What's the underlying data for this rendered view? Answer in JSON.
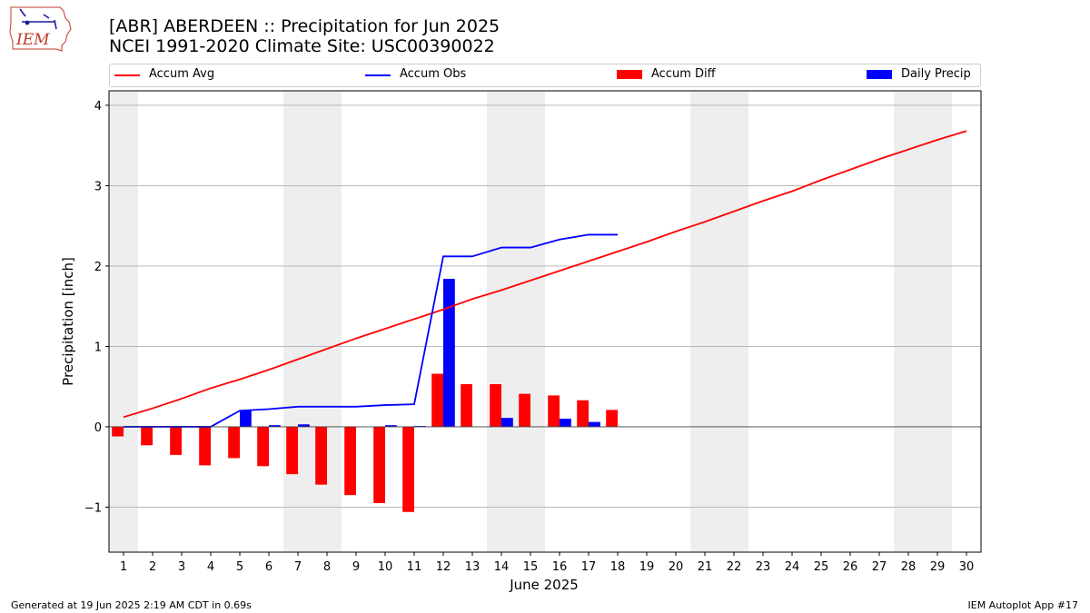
{
  "logo": {
    "text": "IEM"
  },
  "title_line1": "[ABR] ABERDEEN :: Precipitation for Jun 2025",
  "title_line2": "NCEI 1991-2020 Climate Site: USC00390022",
  "legend": {
    "accum_avg": "Accum Avg",
    "accum_obs": "Accum Obs",
    "accum_diff": "Accum Diff",
    "daily_precip": "Daily Precip"
  },
  "footer": {
    "left": "Generated at 19 Jun 2025 2:19 AM CDT in 0.69s",
    "right": "IEM Autoplot App #17"
  },
  "colors": {
    "avg": "#ff0000",
    "obs": "#0000ff",
    "diff": "#ff0000",
    "daily": "#0000ff",
    "weekend": "#eeeeee",
    "grid": "#b0b0b0"
  },
  "chart_data": {
    "type": "bar",
    "xlabel": "June 2025",
    "ylabel": "Precipitation [inch]",
    "ylim": [
      -1.56,
      4.18
    ],
    "xlim": [
      0.5,
      30.5
    ],
    "y_ticks": [
      -1,
      0,
      1,
      2,
      3,
      4
    ],
    "y_tick_labels": [
      "−1",
      "0",
      "1",
      "2",
      "3",
      "4"
    ],
    "x_ticks": [
      1,
      2,
      3,
      4,
      5,
      6,
      7,
      8,
      9,
      10,
      11,
      12,
      13,
      14,
      15,
      16,
      17,
      18,
      19,
      20,
      21,
      22,
      23,
      24,
      25,
      26,
      27,
      28,
      29,
      30
    ],
    "grid": "y",
    "weekend_shading": [
      [
        0.5,
        1.5
      ],
      [
        6.5,
        8.5
      ],
      [
        13.5,
        15.5
      ],
      [
        20.5,
        22.5
      ],
      [
        27.5,
        29.5
      ]
    ],
    "series": [
      {
        "name": "Accum Avg",
        "kind": "line",
        "x": [
          1,
          2,
          3,
          4,
          5,
          6,
          7,
          8,
          9,
          10,
          11,
          12,
          13,
          14,
          15,
          16,
          17,
          18,
          19,
          20,
          21,
          22,
          23,
          24,
          25,
          26,
          27,
          28,
          29,
          30
        ],
        "values": [
          0.12,
          0.23,
          0.35,
          0.48,
          0.59,
          0.71,
          0.84,
          0.97,
          1.1,
          1.22,
          1.34,
          1.46,
          1.59,
          1.7,
          1.82,
          1.94,
          2.06,
          2.18,
          2.3,
          2.43,
          2.55,
          2.68,
          2.81,
          2.93,
          3.07,
          3.2,
          3.33,
          3.45,
          3.57,
          3.68
        ]
      },
      {
        "name": "Accum Obs",
        "kind": "line",
        "x": [
          1,
          2,
          3,
          4,
          5,
          6,
          7,
          8,
          9,
          10,
          11,
          12,
          13,
          14,
          15,
          16,
          17,
          18
        ],
        "values": [
          0.0,
          0.0,
          0.0,
          0.0,
          0.2,
          0.22,
          0.25,
          0.25,
          0.25,
          0.27,
          0.28,
          2.12,
          2.12,
          2.23,
          2.23,
          2.33,
          2.39,
          2.39
        ]
      },
      {
        "name": "Accum Diff",
        "kind": "bar",
        "x": [
          1,
          2,
          3,
          4,
          5,
          6,
          7,
          8,
          9,
          10,
          11,
          12,
          13,
          14,
          15,
          16,
          17,
          18
        ],
        "values": [
          -0.12,
          -0.23,
          -0.35,
          -0.48,
          -0.39,
          -0.49,
          -0.59,
          -0.72,
          -0.85,
          -0.95,
          -1.06,
          0.66,
          0.53,
          0.53,
          0.41,
          0.39,
          0.33,
          0.21
        ]
      },
      {
        "name": "Daily Precip",
        "kind": "bar",
        "x": [
          1,
          2,
          3,
          4,
          5,
          6,
          7,
          8,
          9,
          10,
          11,
          12,
          13,
          14,
          15,
          16,
          17,
          18
        ],
        "values": [
          0.0,
          0.0,
          0.0,
          0.0,
          0.2,
          0.02,
          0.03,
          0.0,
          0.0,
          0.02,
          0.01,
          1.84,
          0.0,
          0.11,
          0.0,
          0.1,
          0.06,
          0.0
        ]
      }
    ]
  }
}
